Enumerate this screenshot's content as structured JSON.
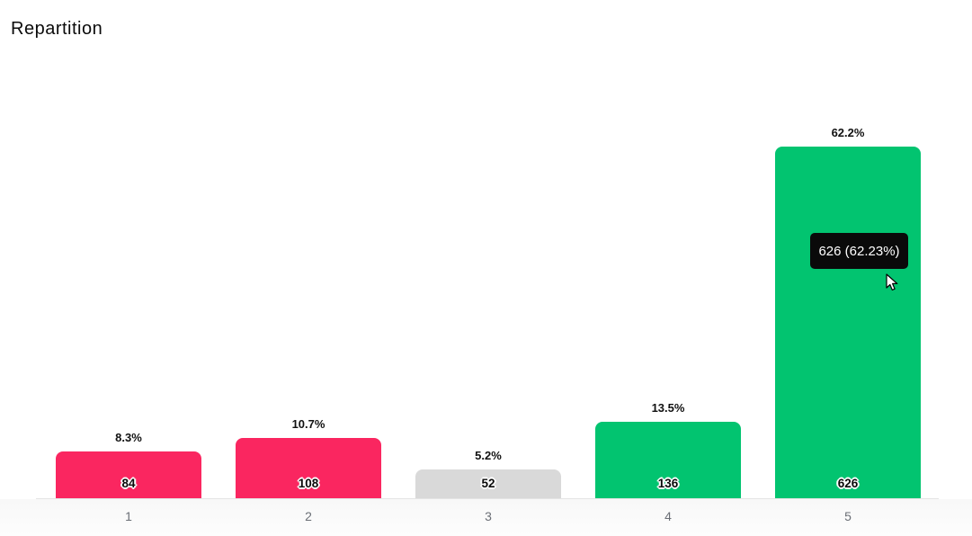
{
  "title": "Repartition",
  "chart_data": {
    "type": "bar",
    "title": "Repartition",
    "categories": [
      "1",
      "2",
      "3",
      "4",
      "5"
    ],
    "values": [
      84,
      108,
      52,
      136,
      626
    ],
    "percent_labels": [
      "8.3%",
      "10.7%",
      "5.2%",
      "13.5%",
      "62.2%"
    ],
    "bar_colors": [
      "#fa2660",
      "#fa2660",
      "#d9d9d9",
      "#02c470",
      "#02c470"
    ],
    "xlabel": "",
    "ylabel": "",
    "ylim": [
      0,
      650
    ],
    "grid": false,
    "legend": false,
    "value_label_position": "inside-bottom",
    "percent_label_position": "above-bar"
  },
  "tooltip": {
    "text": "626 (62.23%)",
    "bg": "#0a0a0a",
    "color": "#ffffff"
  },
  "colors": {
    "pink": "#fa2660",
    "green": "#02c470",
    "gray": "#d9d9d9",
    "axis_line": "#e4e4e4",
    "axis_label": "#6b6f76"
  },
  "cursor": "arrow-pointer"
}
